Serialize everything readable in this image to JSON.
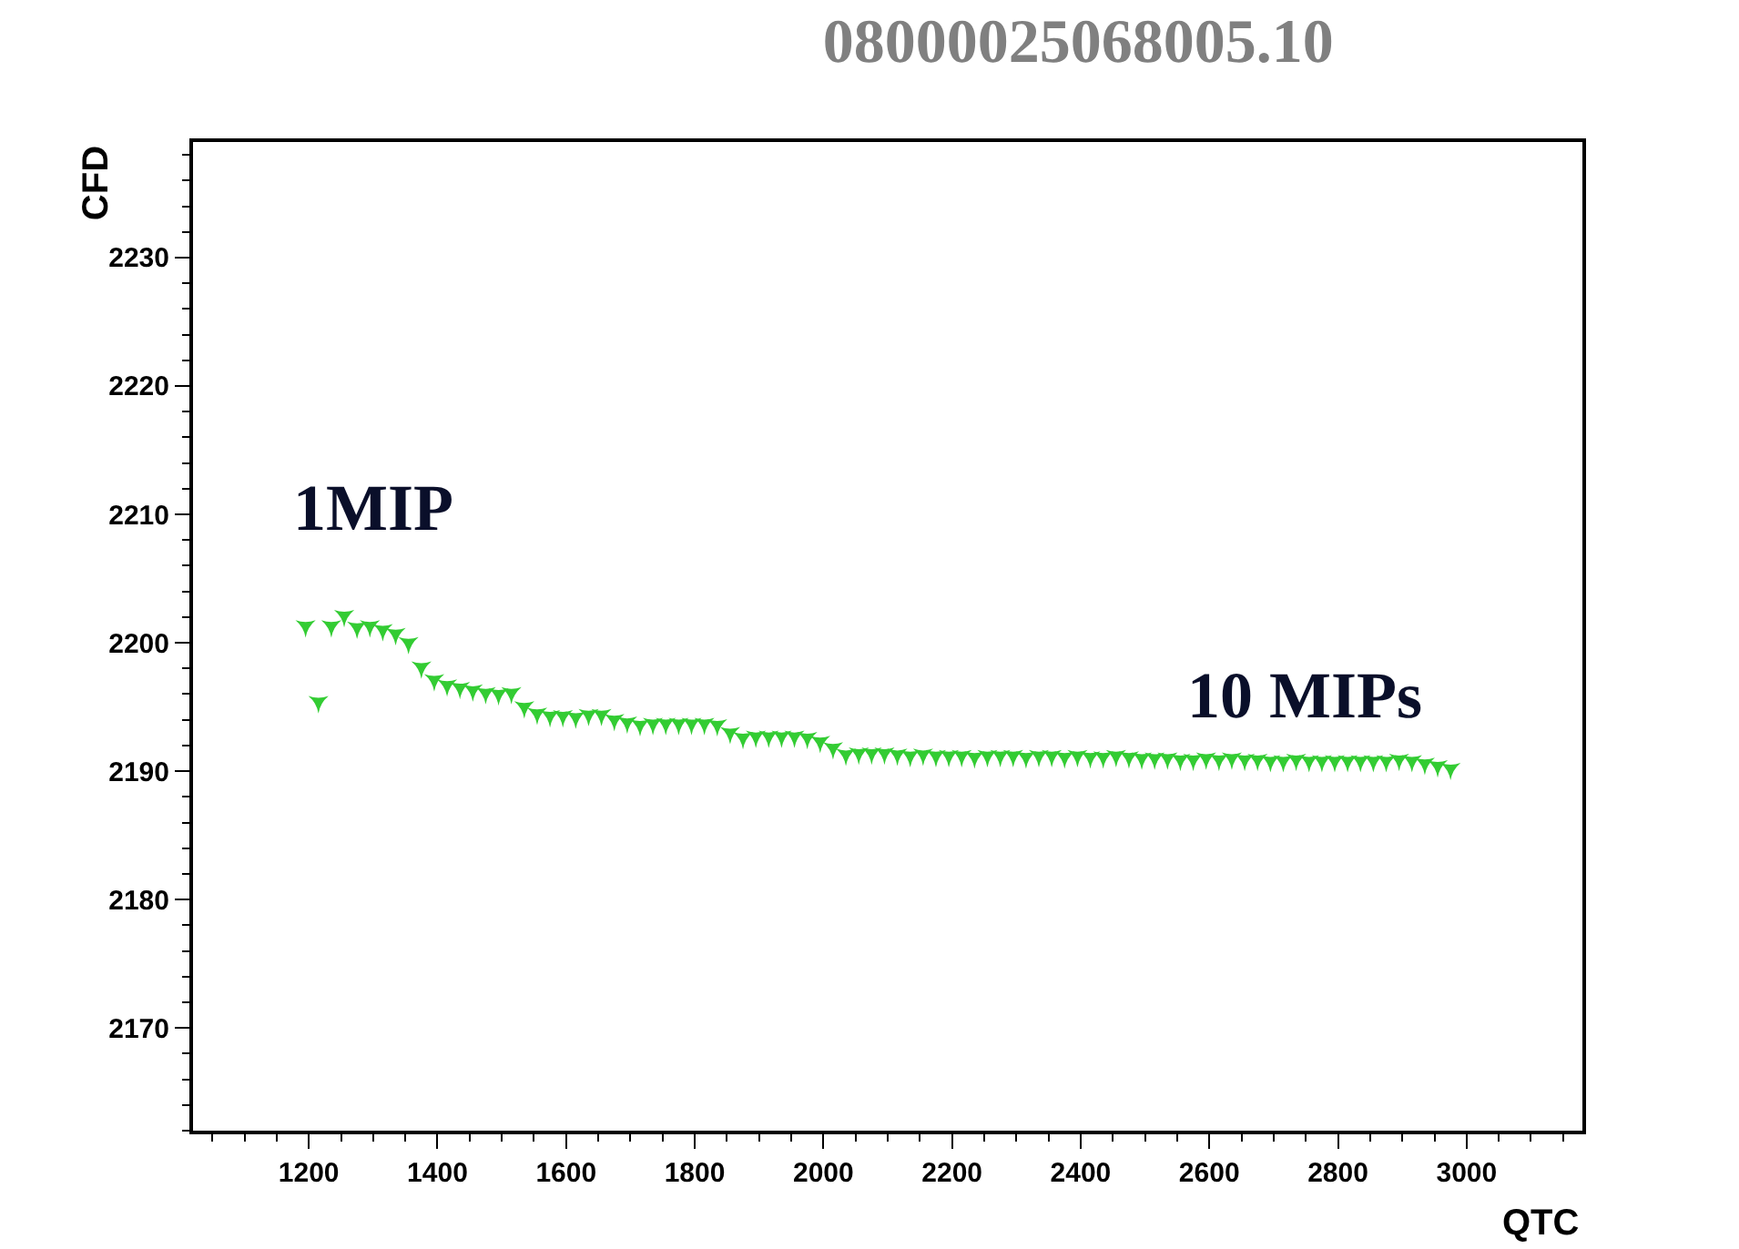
{
  "chart_data": {
    "type": "scatter",
    "title": "08000025068005.10",
    "xlabel": "QTC",
    "ylabel": "CFD",
    "annotations": [
      "1MIP",
      "10 MIPs"
    ],
    "marker": "star",
    "xlim": [
      1020,
      3180
    ],
    "xticks": [
      1200,
      1400,
      1600,
      1800,
      2000,
      2200,
      2400,
      2600,
      2800,
      3000
    ],
    "ylim": [
      2162,
      2239
    ],
    "yticks": [
      2170,
      2180,
      2190,
      2200,
      2210,
      2220,
      2230
    ],
    "x": [
      1195,
      1215,
      1235,
      1255,
      1275,
      1295,
      1315,
      1335,
      1355,
      1375,
      1395,
      1415,
      1435,
      1455,
      1475,
      1495,
      1515,
      1535,
      1555,
      1575,
      1595,
      1615,
      1635,
      1655,
      1675,
      1695,
      1715,
      1735,
      1755,
      1775,
      1795,
      1815,
      1835,
      1855,
      1875,
      1895,
      1915,
      1935,
      1955,
      1975,
      1995,
      2015,
      2035,
      2055,
      2075,
      2095,
      2115,
      2135,
      2155,
      2175,
      2195,
      2215,
      2235,
      2255,
      2275,
      2295,
      2315,
      2335,
      2355,
      2375,
      2395,
      2415,
      2435,
      2455,
      2475,
      2495,
      2515,
      2535,
      2555,
      2575,
      2595,
      2615,
      2635,
      2655,
      2675,
      2695,
      2715,
      2735,
      2755,
      2775,
      2795,
      2815,
      2835,
      2855,
      2875,
      2895,
      2915,
      2935,
      2955,
      2975
    ],
    "series": [
      {
        "color": "#33cc33",
        "values": [
          2201.3,
          2195.4,
          2201.3,
          2202.1,
          2201.2,
          2201.3,
          2201.0,
          2200.7,
          2200.0,
          2198.1,
          2197.1,
          2196.7,
          2196.5,
          2196.3,
          2196.1,
          2196.0,
          2196.1,
          2195.0,
          2194.5,
          2194.3,
          2194.3,
          2194.2,
          2194.4,
          2194.4,
          2194.0,
          2193.8,
          2193.6,
          2193.7,
          2193.7,
          2193.7,
          2193.7,
          2193.7,
          2193.6,
          2193.0,
          2192.6,
          2192.7,
          2192.7,
          2192.7,
          2192.7,
          2192.6,
          2192.3,
          2191.8,
          2191.3,
          2191.4,
          2191.4,
          2191.4,
          2191.3,
          2191.2,
          2191.3,
          2191.2,
          2191.2,
          2191.2,
          2191.1,
          2191.2,
          2191.2,
          2191.2,
          2191.1,
          2191.2,
          2191.2,
          2191.1,
          2191.2,
          2191.1,
          2191.1,
          2191.2,
          2191.1,
          2191.0,
          2191.0,
          2191.0,
          2190.9,
          2190.9,
          2191.0,
          2190.9,
          2191.0,
          2190.9,
          2190.9,
          2190.8,
          2190.8,
          2190.9,
          2190.8,
          2190.8,
          2190.8,
          2190.8,
          2190.8,
          2190.8,
          2190.8,
          2190.9,
          2190.8,
          2190.6,
          2190.4,
          2190.2
        ]
      }
    ]
  }
}
